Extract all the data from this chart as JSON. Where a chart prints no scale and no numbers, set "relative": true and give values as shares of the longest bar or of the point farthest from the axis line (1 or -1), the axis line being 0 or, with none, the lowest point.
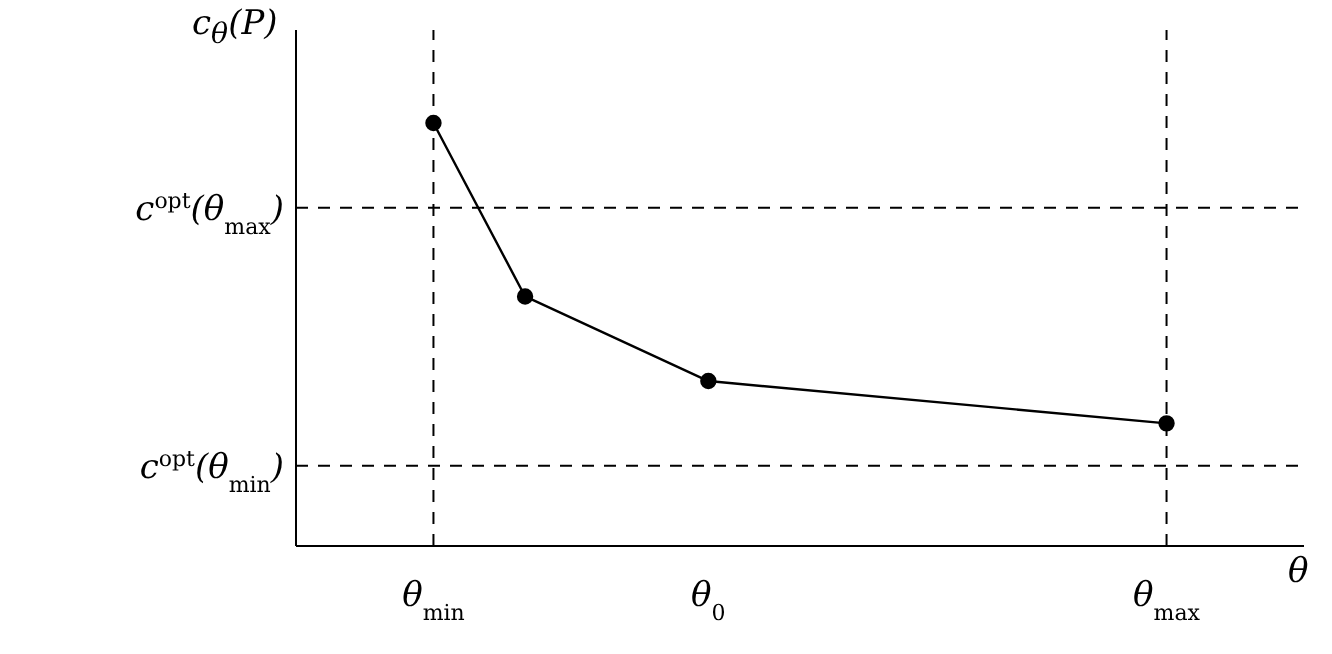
{
  "chart_data": {
    "type": "line",
    "relative": true,
    "xlabel": "θ",
    "ylabel": "c$_{θ}$(P)",
    "categories": [
      null,
      "θ$_{min}$",
      null,
      null,
      "θ$_{0}$",
      null,
      null,
      null,
      null,
      "θ$_{max}$",
      null
    ],
    "series": [
      {
        "color": "#000000",
        "values": [
          null,
          1,
          0.59,
          null,
          0.39,
          null,
          null,
          null,
          null,
          0.29,
          null
        ]
      }
    ],
    "marker": "circle",
    "line_style": "solid",
    "grid": false,
    "legend": false,
    "ref_lines": [
      {
        "axis": "y",
        "value": 0.8,
        "label": "c$^{opt}$(θ$_{max}$)",
        "line_style": "dashed",
        "color": "#000000"
      },
      {
        "axis": "y",
        "value": 0.19,
        "label": "c$^{opt}$(θ$_{min}$)",
        "line_style": "dashed",
        "color": "#000000"
      },
      {
        "axis": "x",
        "value": "θ$_{min}$",
        "line_style": "dashed",
        "color": "#000000"
      },
      {
        "axis": "x",
        "value": "θ$_{max}$",
        "line_style": "dashed",
        "color": "#000000"
      }
    ]
  }
}
